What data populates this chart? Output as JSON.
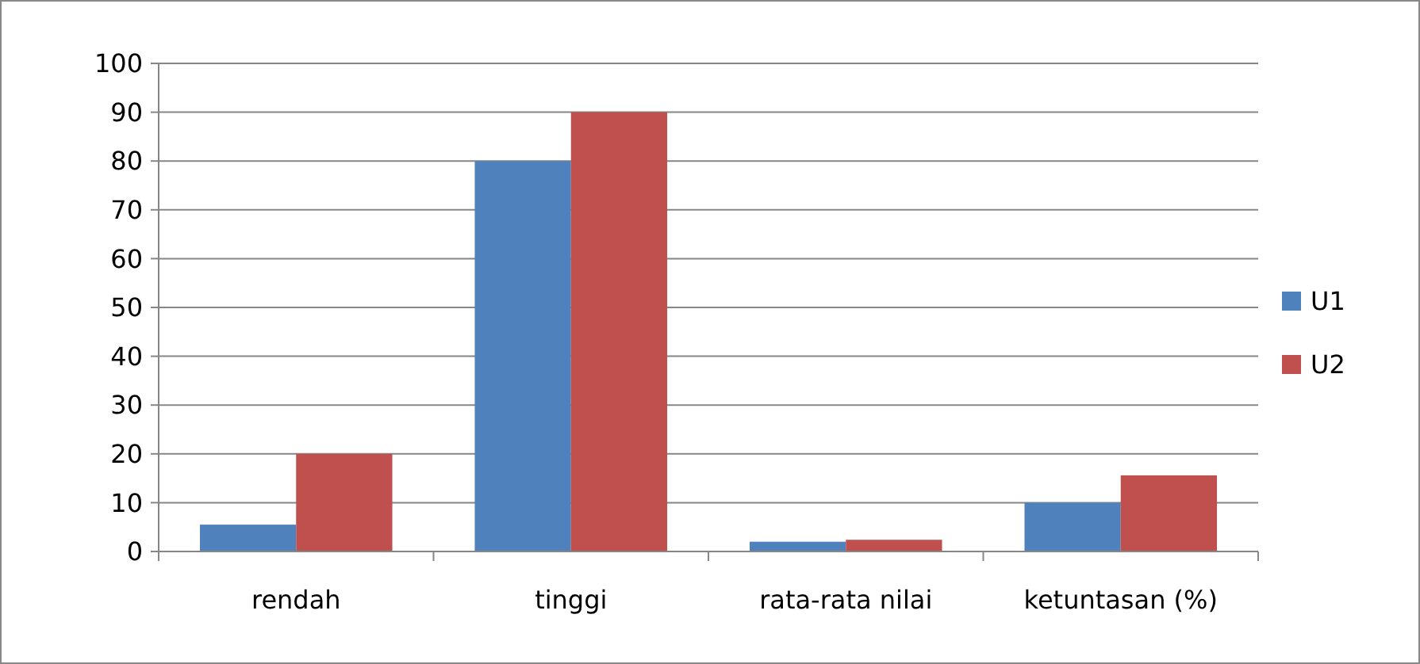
{
  "chart_data": {
    "type": "bar",
    "categories": [
      "rendah",
      "tinggi",
      "rata-rata nilai",
      "ketuntasan (%)"
    ],
    "series": [
      {
        "name": "U1",
        "color": "#4f81bd",
        "values": [
          5.5,
          80,
          2,
          10
        ]
      },
      {
        "name": "U2",
        "color": "#c0504d",
        "values": [
          20,
          90,
          2.4,
          15.6
        ]
      }
    ],
    "ylim": [
      0,
      100
    ],
    "yticks": [
      0,
      10,
      20,
      30,
      40,
      50,
      60,
      70,
      80,
      90,
      100
    ],
    "grid": "y",
    "legend": "right"
  }
}
